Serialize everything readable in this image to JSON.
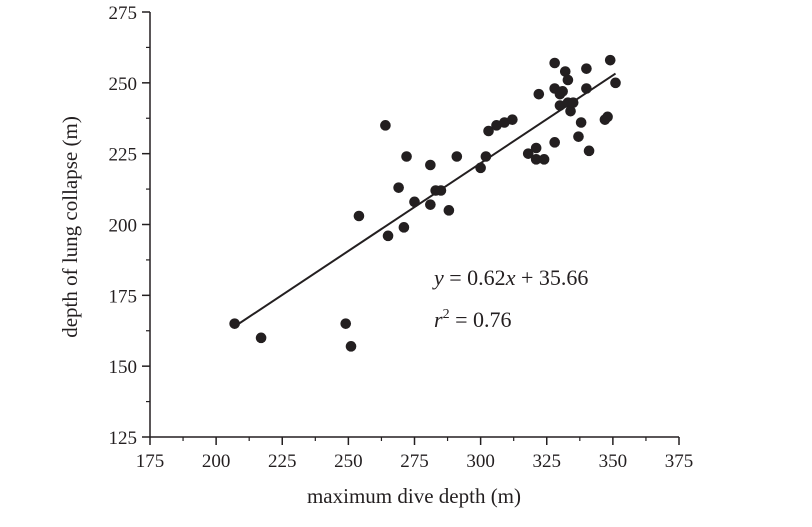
{
  "chart_data": {
    "type": "scatter",
    "xlabel": "maximum dive depth (m)",
    "ylabel": "depth of lung collapse (m)",
    "xlim": [
      175,
      375
    ],
    "ylim": [
      125,
      275
    ],
    "x_ticks": [
      "175",
      "200",
      "225",
      "250",
      "275",
      "300",
      "325",
      "350",
      "375"
    ],
    "y_ticks": [
      "125",
      "150",
      "175",
      "200",
      "225",
      "250",
      "275"
    ],
    "grid": false,
    "legend": "none",
    "series": [
      {
        "points": [
          {
            "x": 207,
            "y": 165
          },
          {
            "x": 217,
            "y": 160
          },
          {
            "x": 249,
            "y": 165
          },
          {
            "x": 251,
            "y": 157
          },
          {
            "x": 254,
            "y": 203
          },
          {
            "x": 264,
            "y": 235
          },
          {
            "x": 265,
            "y": 196
          },
          {
            "x": 269,
            "y": 213
          },
          {
            "x": 271,
            "y": 199
          },
          {
            "x": 272,
            "y": 224
          },
          {
            "x": 275,
            "y": 208
          },
          {
            "x": 281,
            "y": 221
          },
          {
            "x": 281,
            "y": 207
          },
          {
            "x": 283,
            "y": 212
          },
          {
            "x": 285,
            "y": 212
          },
          {
            "x": 288,
            "y": 205
          },
          {
            "x": 291,
            "y": 224
          },
          {
            "x": 300,
            "y": 220
          },
          {
            "x": 302,
            "y": 224
          },
          {
            "x": 303,
            "y": 233
          },
          {
            "x": 306,
            "y": 235
          },
          {
            "x": 309,
            "y": 236
          },
          {
            "x": 312,
            "y": 237
          },
          {
            "x": 318,
            "y": 225
          },
          {
            "x": 321,
            "y": 223
          },
          {
            "x": 321,
            "y": 227
          },
          {
            "x": 322,
            "y": 246
          },
          {
            "x": 324,
            "y": 223
          },
          {
            "x": 328,
            "y": 257
          },
          {
            "x": 328,
            "y": 248
          },
          {
            "x": 328,
            "y": 229
          },
          {
            "x": 330,
            "y": 246
          },
          {
            "x": 330,
            "y": 242
          },
          {
            "x": 331,
            "y": 247
          },
          {
            "x": 332,
            "y": 254
          },
          {
            "x": 333,
            "y": 243
          },
          {
            "x": 333,
            "y": 251
          },
          {
            "x": 334,
            "y": 240
          },
          {
            "x": 335,
            "y": 243
          },
          {
            "x": 337,
            "y": 231
          },
          {
            "x": 338,
            "y": 236
          },
          {
            "x": 340,
            "y": 255
          },
          {
            "x": 340,
            "y": 248
          },
          {
            "x": 341,
            "y": 226
          },
          {
            "x": 347,
            "y": 237
          },
          {
            "x": 348,
            "y": 238
          },
          {
            "x": 349,
            "y": 258
          },
          {
            "x": 351,
            "y": 250
          }
        ]
      }
    ],
    "regression": {
      "slope": 0.62,
      "intercept": 35.66,
      "x_range": [
        207,
        351
      ]
    },
    "annotations": {
      "equation": {
        "y": "y",
        "eq": " = 0.62",
        "x": "x",
        "rest": " + 35.66"
      },
      "r_squared": {
        "r": "r",
        "sup": "2",
        "rest": " = 0.76"
      }
    }
  }
}
